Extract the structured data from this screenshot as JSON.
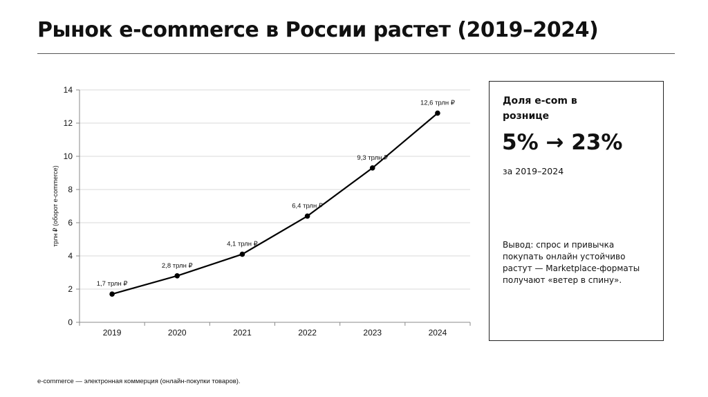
{
  "title": "Рынок e-commerce в России растет (2019–2024)",
  "chart_data": {
    "type": "line",
    "categories": [
      "2019",
      "2020",
      "2021",
      "2022",
      "2023",
      "2024"
    ],
    "values": [
      1.7,
      2.8,
      4.1,
      6.4,
      9.3,
      12.6
    ],
    "data_labels": [
      "1,7 трлн ₽",
      "2,8 трлн ₽",
      "4,1 трлн ₽",
      "6,4 трлн ₽",
      "9,3 трлн ₽",
      "12,6 трлн ₽"
    ],
    "ylabel": "трлн ₽ (оборот e-commerce)",
    "xlabel": "",
    "ylim": [
      0,
      14
    ],
    "yticks": [
      0,
      2,
      4,
      6,
      8,
      10,
      12,
      14
    ],
    "grid": true,
    "line_color": "#000000",
    "grid_color": "#d9d9d9"
  },
  "side_panel": {
    "label": "Доля e-com в рознице",
    "value": "5% → 23%",
    "period": "за 2019–2024",
    "conclusion": "Вывод: спрос и привычка покупать онлайн устойчиво растут — Marketplace-форматы получают «ветер в спину»."
  },
  "footnote": "e-commerce — электронная коммерция (онлайн-покупки товаров)."
}
